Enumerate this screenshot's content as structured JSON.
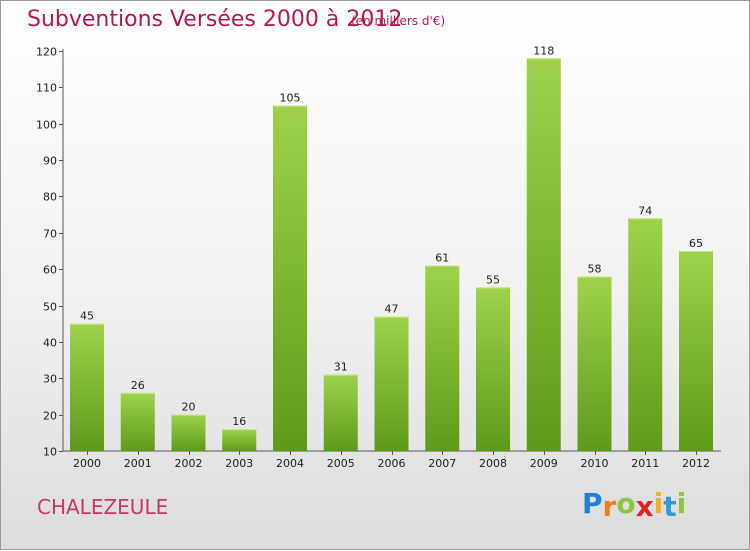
{
  "chart_data": {
    "type": "bar",
    "title": "Subventions Versées 2000 à 2012",
    "unit_label": "(en milliers d'€)",
    "categories": [
      "2000",
      "2001",
      "2002",
      "2003",
      "2004",
      "2005",
      "2006",
      "2007",
      "2008",
      "2009",
      "2010",
      "2011",
      "2012"
    ],
    "values": [
      45,
      26,
      20,
      16,
      105,
      31,
      47,
      61,
      55,
      118,
      58,
      74,
      65
    ],
    "ylim": [
      10,
      120
    ],
    "yticks": [
      10,
      20,
      30,
      40,
      50,
      60,
      70,
      80,
      90,
      100,
      110,
      120
    ],
    "grid": false,
    "bar_color_top": "#9fd24a",
    "bar_color_bottom": "#5e9a1a"
  },
  "footer": {
    "commune": "CHALEZEULE"
  },
  "brand": {
    "letters": [
      "P",
      "r",
      "o",
      "x",
      "i",
      "t",
      "i"
    ],
    "colors": [
      "#1e7fd4",
      "#f07c1a",
      "#8cc63f",
      "#e0242a",
      "#f2b01e",
      "#2f9bd8",
      "#8cc63f"
    ]
  }
}
